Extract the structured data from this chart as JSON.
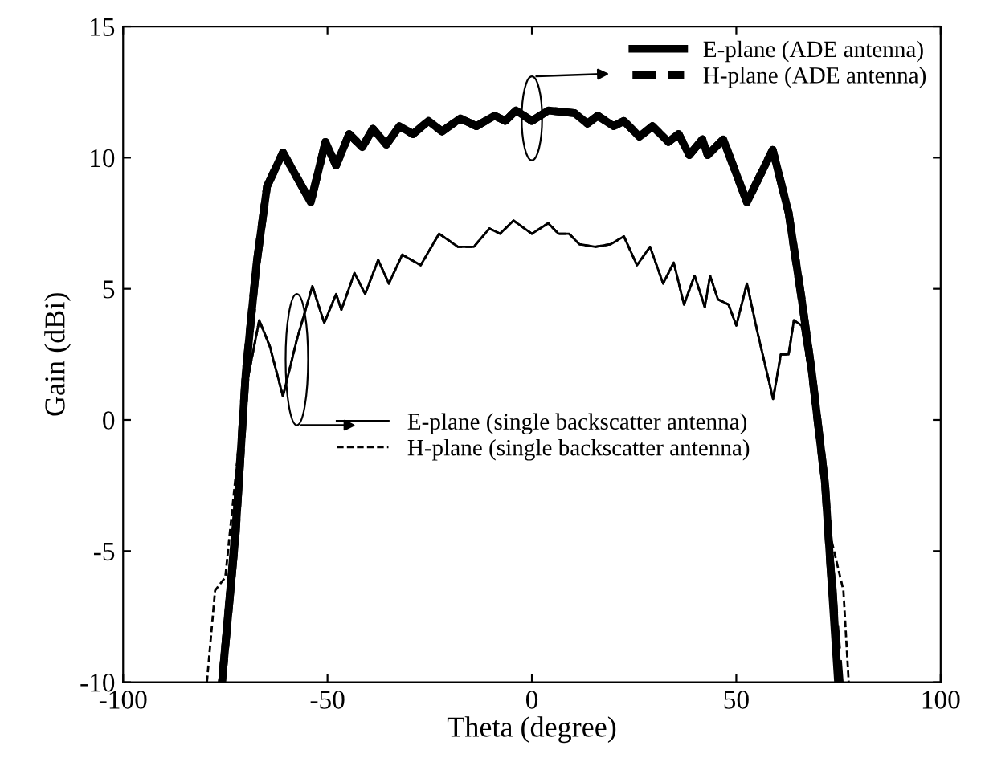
{
  "chart_data": {
    "type": "line",
    "xlabel": "Theta (degree)",
    "ylabel": "Gain (dBi)",
    "xlim": [
      -100,
      100
    ],
    "ylim": [
      -10,
      15
    ],
    "xticks": [
      -100,
      -50,
      0,
      50,
      100
    ],
    "yticks": [
      -10,
      -5,
      0,
      5,
      10,
      15
    ],
    "grid": false,
    "legend": "top right",
    "series": [
      {
        "name": "E-plane (ADE antenna)",
        "color": "#000000",
        "line_style": "solid",
        "x": [
          -75.8,
          -72.5,
          -70,
          -67.4,
          -64.8,
          -60.9,
          -54.1,
          -50.5,
          -47.9,
          -44.7,
          -41.5,
          -38.9,
          -35.6,
          -32.4,
          -29.1,
          -25.3,
          -22,
          -17.5,
          -13.6,
          -9.1,
          -6.5,
          -3.9,
          0,
          4,
          10.4,
          13.6,
          16.1,
          20,
          22.5,
          26.3,
          29.5,
          33.4,
          35.9,
          38.5,
          41.7,
          43,
          46.8,
          52.6,
          58.9,
          62.8,
          66,
          68.5,
          71.7,
          73,
          74.9
        ],
        "values": [
          -10,
          -4.4,
          1.8,
          5.9,
          8.9,
          10.2,
          8.3,
          10.6,
          9.7,
          10.9,
          10.4,
          11.1,
          10.5,
          11.2,
          10.9,
          11.4,
          11.0,
          11.5,
          11.2,
          11.6,
          11.4,
          11.8,
          11.4,
          11.8,
          11.7,
          11.3,
          11.6,
          11.2,
          11.4,
          10.8,
          11.2,
          10.6,
          10.9,
          10.1,
          10.7,
          10.1,
          10.7,
          8.3,
          10.3,
          7.9,
          4.6,
          1.8,
          -2.4,
          -5.5,
          -10
        ]
      },
      {
        "name": "H-plane (ADE antenna)",
        "color": "#000000",
        "line_style": "dashed",
        "x": [
          -75.8,
          -72.5,
          -70,
          -67.4,
          -64.8,
          -60.9,
          -54.1,
          -50.5,
          -47.9,
          -44.7,
          -41.5,
          -38.9,
          -35.6,
          -32.4,
          -29.1,
          -25.3,
          -22,
          -17.5,
          -13.6,
          -9.1,
          -6.5,
          -3.9,
          0,
          4,
          10.4,
          13.6,
          16.1,
          20,
          22.5,
          26.3,
          29.5,
          33.4,
          35.9,
          38.5,
          41.7,
          43,
          46.8,
          52.6,
          58.9,
          62.8,
          66,
          68.5,
          71.7,
          73,
          75.3
        ],
        "values": [
          -10,
          -4.4,
          1.8,
          5.9,
          8.9,
          10.2,
          8.3,
          10.6,
          9.7,
          10.9,
          10.4,
          11.1,
          10.5,
          11.2,
          10.9,
          11.4,
          11.0,
          11.5,
          11.2,
          11.6,
          11.4,
          11.8,
          11.4,
          11.8,
          11.7,
          11.3,
          11.6,
          11.2,
          11.4,
          10.8,
          11.2,
          10.6,
          10.9,
          10.1,
          10.7,
          10.1,
          10.7,
          8.3,
          10.3,
          7.9,
          4.6,
          1.8,
          -2.4,
          -5.5,
          -10
        ]
      },
      {
        "name": "E-plane (single backscatter antenna)",
        "color": "#000000",
        "line_style": "solid",
        "x": [
          -76.5,
          -74.5,
          -70.6,
          -66.7,
          -64.1,
          -60.9,
          -57.6,
          -53.7,
          -50.8,
          -47.9,
          -46.6,
          -43.4,
          -40.8,
          -37.6,
          -35,
          -31.7,
          -27.2,
          -22.7,
          -18.1,
          -14.2,
          -10.4,
          -7.8,
          -4.5,
          0,
          4,
          6.5,
          9.1,
          11.6,
          15.5,
          19.3,
          22.5,
          25.7,
          28.9,
          32.1,
          34.7,
          37.2,
          39.8,
          42.3,
          43.6,
          45.5,
          48.1,
          50,
          52.6,
          55.1,
          59,
          60.9,
          62.8,
          64.1,
          66,
          67.9,
          69.9,
          71.1,
          73,
          74.3,
          75.5
        ],
        "values": [
          -10,
          -6.5,
          0.7,
          3.8,
          2.8,
          0.9,
          3.0,
          5.1,
          3.7,
          4.8,
          4.2,
          5.6,
          4.8,
          6.1,
          5.2,
          6.3,
          5.9,
          7.1,
          6.6,
          6.6,
          7.3,
          7.1,
          7.6,
          7.1,
          7.5,
          7.1,
          7.1,
          6.7,
          6.6,
          6.7,
          7.0,
          5.9,
          6.6,
          5.2,
          6.0,
          4.4,
          5.5,
          4.3,
          5.5,
          4.6,
          4.4,
          3.6,
          5.2,
          3.4,
          0.8,
          2.5,
          2.5,
          3.8,
          3.6,
          1.8,
          -0.7,
          -2.4,
          -4.4,
          -6.5,
          -10
        ]
      },
      {
        "name": "H-plane (single backscatter antenna)",
        "color": "#000000",
        "line_style": "dashed",
        "x": [
          -79.5,
          -77.5,
          -75,
          -70.6,
          -66.7,
          -64.1,
          -60.9,
          -57.6,
          -53.7,
          -50.8,
          -47.9,
          -46.6,
          -43.4,
          -40.8,
          -37.6,
          -35,
          -31.7,
          -27.2,
          -22.7,
          -18.1,
          -14.2,
          -10.4,
          -7.8,
          -4.5,
          0,
          4,
          6.5,
          9.1,
          11.6,
          15.5,
          19.3,
          22.5,
          25.7,
          28.9,
          32.1,
          34.7,
          37.2,
          39.8,
          42.3,
          43.6,
          45.5,
          48.1,
          50,
          52.6,
          55.1,
          59,
          60.9,
          62.8,
          64.1,
          66,
          67.9,
          69.9,
          71.1,
          73,
          76.2,
          77.5
        ],
        "values": [
          -10,
          -6.5,
          -6.0,
          0.7,
          3.8,
          2.8,
          0.9,
          3.0,
          5.1,
          3.7,
          4.8,
          4.2,
          5.6,
          4.8,
          6.1,
          5.2,
          6.3,
          5.9,
          7.1,
          6.6,
          6.6,
          7.3,
          7.1,
          7.6,
          7.1,
          7.5,
          7.1,
          7.1,
          6.7,
          6.6,
          6.7,
          7.0,
          5.9,
          6.6,
          5.2,
          6.0,
          4.4,
          5.5,
          4.3,
          5.5,
          4.6,
          4.4,
          3.6,
          5.2,
          3.4,
          0.8,
          2.5,
          2.5,
          3.8,
          3.6,
          1.8,
          -0.7,
          -2.4,
          -4.4,
          -6.5,
          -10
        ]
      }
    ]
  }
}
